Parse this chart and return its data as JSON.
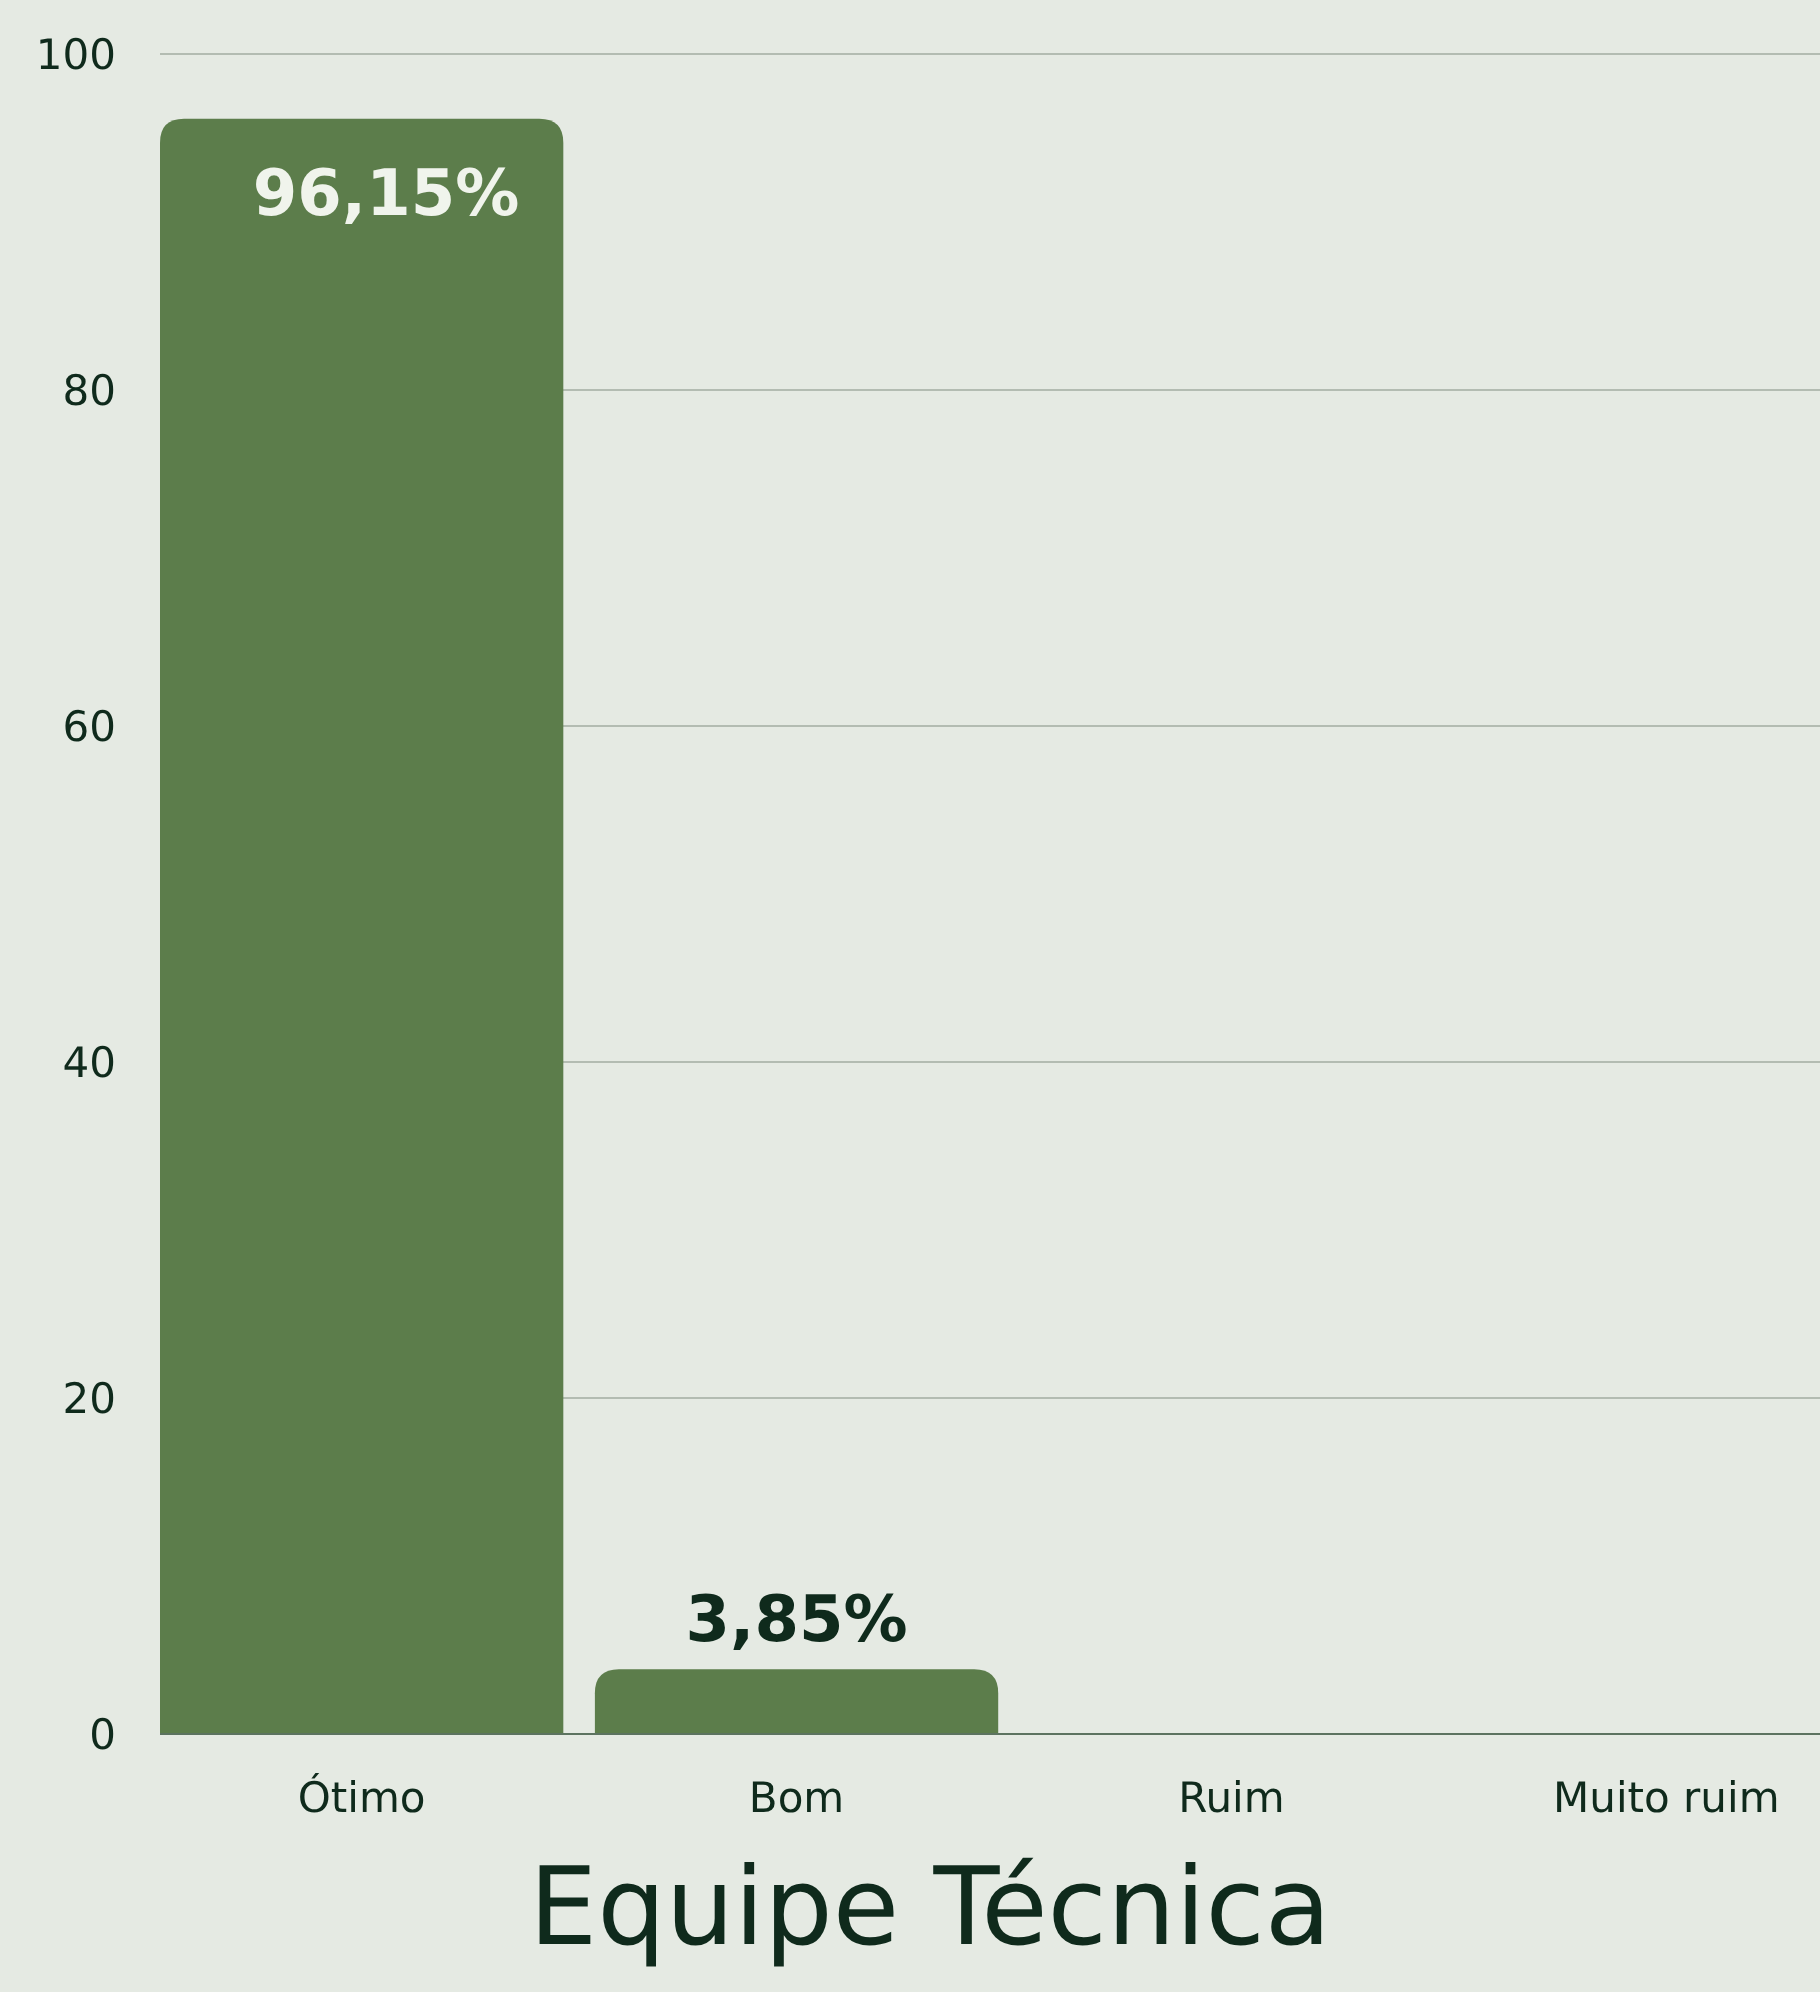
{
  "chart_data": {
    "type": "bar",
    "title": "Equipe Técnica",
    "categories": [
      "Ótimo",
      "Bom",
      "Ruim",
      "Muito ruim"
    ],
    "values": [
      96.15,
      3.85,
      0,
      0
    ],
    "value_labels": [
      "96,15%",
      "3,85%",
      null,
      null
    ],
    "color": "#5c7d4b",
    "ylim": [
      0,
      100
    ],
    "yticks": [
      0,
      20,
      40,
      60,
      80,
      100
    ],
    "grid": "y"
  }
}
